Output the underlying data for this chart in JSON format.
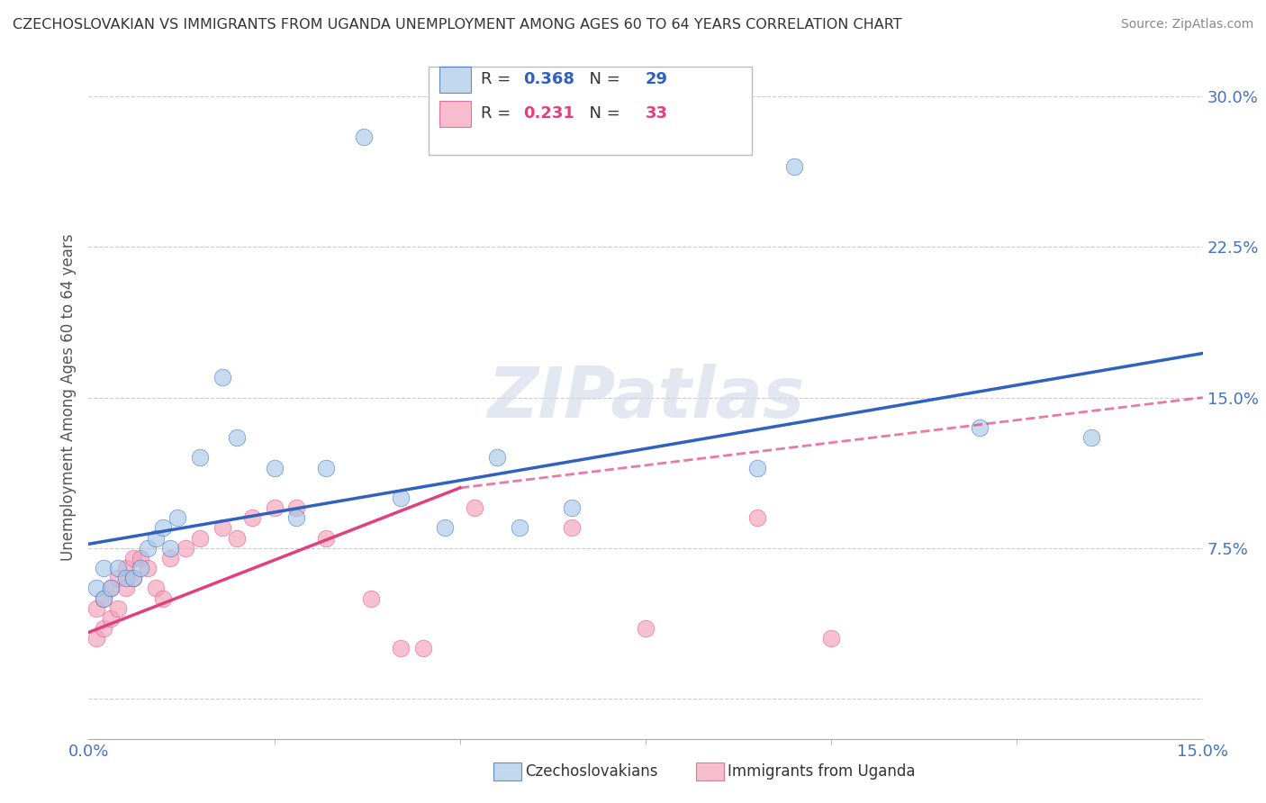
{
  "title": "CZECHOSLOVAKIAN VS IMMIGRANTS FROM UGANDA UNEMPLOYMENT AMONG AGES 60 TO 64 YEARS CORRELATION CHART",
  "source": "Source: ZipAtlas.com",
  "ylabel": "Unemployment Among Ages 60 to 64 years",
  "xlim": [
    0,
    0.15
  ],
  "ylim": [
    -0.02,
    0.32
  ],
  "xticks": [
    0.0,
    0.15
  ],
  "xtick_labels": [
    "0.0%",
    "15.0%"
  ],
  "yticks": [
    0.0,
    0.075,
    0.15,
    0.225,
    0.3
  ],
  "ytick_labels": [
    "",
    "7.5%",
    "15.0%",
    "22.5%",
    "30.0%"
  ],
  "legend1_r": "0.368",
  "legend1_n": "29",
  "legend2_r": "0.231",
  "legend2_n": "33",
  "legend1_label": "Czechoslovakians",
  "legend2_label": "Immigrants from Uganda",
  "blue_color": "#a8c8e8",
  "pink_color": "#f4a0b8",
  "blue_line_color": "#3060c0",
  "pink_line_color": "#e04080",
  "watermark": "ZIPatlas",
  "blue_scatter_x": [
    0.001,
    0.002,
    0.002,
    0.003,
    0.004,
    0.005,
    0.006,
    0.007,
    0.008,
    0.009,
    0.01,
    0.011,
    0.012,
    0.015,
    0.018,
    0.02,
    0.025,
    0.028,
    0.032,
    0.037,
    0.042,
    0.048,
    0.055,
    0.058,
    0.065,
    0.09,
    0.095,
    0.12,
    0.135
  ],
  "blue_scatter_y": [
    0.055,
    0.05,
    0.065,
    0.055,
    0.065,
    0.06,
    0.06,
    0.065,
    0.075,
    0.08,
    0.085,
    0.075,
    0.09,
    0.12,
    0.16,
    0.13,
    0.115,
    0.09,
    0.115,
    0.28,
    0.1,
    0.085,
    0.12,
    0.085,
    0.095,
    0.115,
    0.265,
    0.135,
    0.13
  ],
  "pink_scatter_x": [
    0.001,
    0.001,
    0.002,
    0.002,
    0.003,
    0.003,
    0.004,
    0.004,
    0.005,
    0.005,
    0.006,
    0.006,
    0.007,
    0.008,
    0.009,
    0.01,
    0.011,
    0.013,
    0.015,
    0.018,
    0.02,
    0.022,
    0.025,
    0.028,
    0.032,
    0.038,
    0.042,
    0.045,
    0.052,
    0.065,
    0.075,
    0.09,
    0.1
  ],
  "pink_scatter_y": [
    0.03,
    0.045,
    0.035,
    0.05,
    0.04,
    0.055,
    0.045,
    0.06,
    0.055,
    0.065,
    0.06,
    0.07,
    0.07,
    0.065,
    0.055,
    0.05,
    0.07,
    0.075,
    0.08,
    0.085,
    0.08,
    0.09,
    0.095,
    0.095,
    0.08,
    0.05,
    0.025,
    0.025,
    0.095,
    0.085,
    0.035,
    0.09,
    0.03
  ],
  "blue_line_x0": 0.0,
  "blue_line_y0": 0.077,
  "blue_line_x1": 0.15,
  "blue_line_y1": 0.172,
  "pink_line_solid_x0": 0.0,
  "pink_line_solid_y0": 0.033,
  "pink_line_solid_x1": 0.05,
  "pink_line_solid_y1": 0.105,
  "pink_line_dash_x0": 0.05,
  "pink_line_dash_y0": 0.105,
  "pink_line_dash_x1": 0.15,
  "pink_line_dash_y1": 0.15
}
